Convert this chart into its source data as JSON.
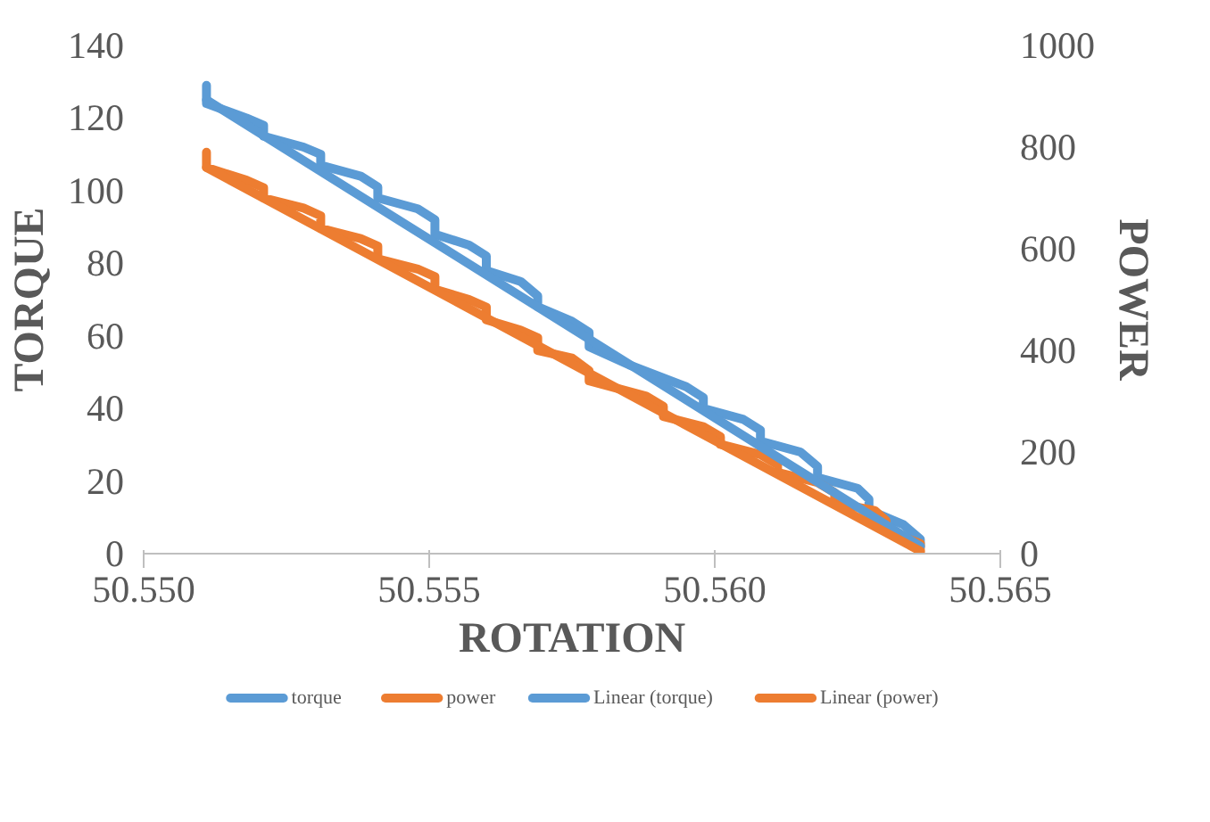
{
  "chart_data": {
    "type": "line",
    "xlabel": "ROTATION",
    "ylabel": "TORQUE",
    "y2label": "POWER",
    "xlim": [
      50.55,
      50.565
    ],
    "xticks": [
      {
        "value": 50.55,
        "label": "50.550"
      },
      {
        "value": 50.555,
        "label": "50.555"
      },
      {
        "value": 50.56,
        "label": "50.560"
      },
      {
        "value": 50.565,
        "label": "50.565"
      }
    ],
    "ylim": [
      0,
      140
    ],
    "yticks": [
      0,
      20,
      40,
      60,
      80,
      100,
      120,
      140
    ],
    "y2lim": [
      0,
      1000
    ],
    "y2ticks": [
      0,
      200,
      400,
      600,
      800,
      1000
    ],
    "grid": false,
    "legend": "bottom",
    "marker": "none",
    "line_style": "solid",
    "series": [
      {
        "name": "torque",
        "color": "#5b9bd5",
        "x": [
          50.5511,
          50.5511,
          50.5518,
          50.5521,
          50.5521,
          50.5528,
          50.5531,
          50.5531,
          50.5538,
          50.5541,
          50.5541,
          50.5548,
          50.5551,
          50.5551,
          50.5557,
          50.556,
          50.556,
          50.5566,
          50.5569,
          50.5569,
          50.5575,
          50.5578,
          50.5578,
          50.5585,
          50.5595,
          50.5598,
          50.5598,
          50.5605,
          50.5608,
          50.5608,
          50.5615,
          50.5618,
          50.5618,
          50.5625,
          50.5627,
          50.5627,
          50.5633,
          50.5636,
          50.5636
        ],
        "values": [
          129,
          124,
          120,
          118,
          115,
          112,
          110,
          107,
          104,
          101,
          98,
          95,
          92,
          88,
          85,
          82,
          78,
          75,
          71,
          68,
          64,
          61,
          57,
          52,
          46,
          43,
          40,
          37,
          34,
          31,
          28,
          24,
          21,
          18,
          15,
          12,
          8,
          4,
          2
        ]
      },
      {
        "name": "power",
        "color": "#ed7d31",
        "axis": "y2",
        "x": [
          50.5511,
          50.5511,
          50.5518,
          50.5521,
          50.5521,
          50.5528,
          50.5531,
          50.5531,
          50.5538,
          50.5541,
          50.5541,
          50.5548,
          50.5551,
          50.5551,
          50.5557,
          50.556,
          50.556,
          50.5566,
          50.5569,
          50.5569,
          50.5575,
          50.5578,
          50.5578,
          50.5588,
          50.5591,
          50.5591,
          50.5598,
          50.5601,
          50.5601,
          50.5608,
          50.5611,
          50.5611,
          50.5618,
          50.5621,
          50.5621,
          50.5628,
          50.563,
          50.563,
          50.5636,
          50.5636
        ],
        "values": [
          790,
          760,
          735,
          720,
          700,
          680,
          665,
          640,
          620,
          605,
          580,
          560,
          545,
          520,
          500,
          485,
          460,
          440,
          425,
          400,
          385,
          360,
          340,
          310,
          290,
          270,
          250,
          230,
          215,
          195,
          175,
          160,
          140,
          120,
          100,
          85,
          65,
          45,
          20,
          0
        ]
      },
      {
        "name": "Linear (torque)",
        "color": "#5b9bd5",
        "x": [
          50.5511,
          50.5636
        ],
        "values": [
          125,
          2
        ]
      },
      {
        "name": "Linear (power)",
        "color": "#ed7d31",
        "axis": "y2",
        "x": [
          50.5511,
          50.5636
        ],
        "values": [
          760,
          5
        ]
      }
    ]
  }
}
